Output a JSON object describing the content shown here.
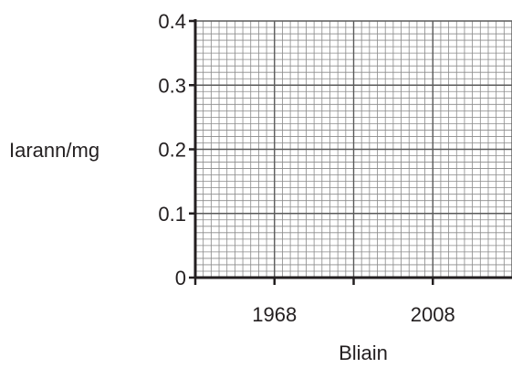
{
  "chart_data": {
    "type": "line",
    "title": "",
    "xlabel": "Bliain",
    "ylabel": "Iarann/mg",
    "xlim": [
      1948,
      2028
    ],
    "ylim": [
      0,
      0.4
    ],
    "x_ticks": [
      1968,
      2008
    ],
    "x_tick_labels": [
      "1968",
      "2008"
    ],
    "x_tick_marks": [
      1948,
      1968,
      1988,
      2008
    ],
    "y_ticks": [
      0,
      0.1,
      0.2,
      0.3,
      0.4
    ],
    "y_tick_labels": [
      "0",
      "0.1",
      "0.2",
      "0.3",
      "0.4"
    ],
    "grid": true,
    "series": []
  }
}
